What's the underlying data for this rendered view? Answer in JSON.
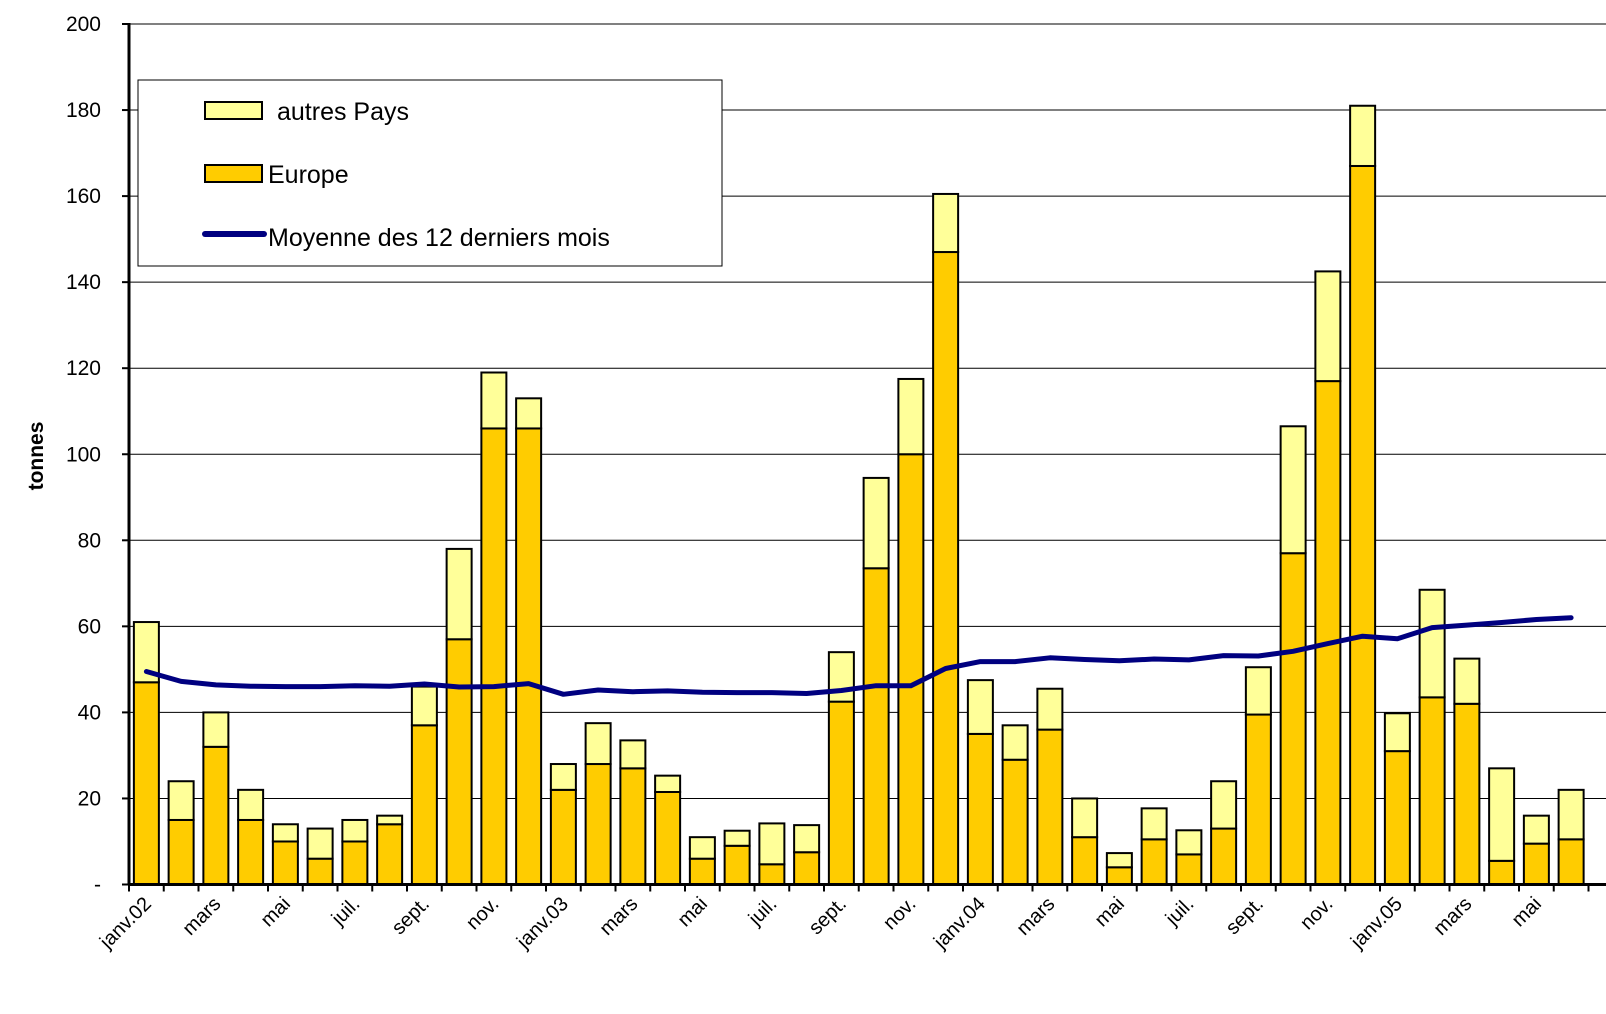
{
  "chart_data": {
    "type": "bar",
    "stacked": true,
    "ylabel": "tonnes",
    "ylim": [
      0,
      200
    ],
    "yticks": [
      {
        "value": 0,
        "label": "-"
      },
      {
        "value": 20,
        "label": "20"
      },
      {
        "value": 40,
        "label": "40"
      },
      {
        "value": 60,
        "label": "60"
      },
      {
        "value": 80,
        "label": "80"
      },
      {
        "value": 100,
        "label": "100"
      },
      {
        "value": 120,
        "label": "120"
      },
      {
        "value": 140,
        "label": "140"
      },
      {
        "value": 160,
        "label": "160"
      },
      {
        "value": 180,
        "label": "180"
      },
      {
        "value": 200,
        "label": "200"
      }
    ],
    "xtick_labels": [
      "janv.02",
      "mars",
      "mai",
      "juil.",
      "sept.",
      "nov.",
      "janv.03",
      "mars",
      "mai",
      "juil.",
      "sept.",
      "nov.",
      "janv.04",
      "mars",
      "mai",
      "juil.",
      "sept.",
      "nov.",
      "janv.05",
      "mars",
      "mai"
    ],
    "grid": true,
    "legend_position": "top-left",
    "colors": {
      "autres": "#ffff99",
      "europe": "#ffcc00",
      "line": "#000080",
      "edge": "#000000"
    },
    "series": [
      {
        "name": "Europe",
        "kind": "bar",
        "values": [
          47,
          15,
          32,
          15,
          10,
          6,
          10,
          14,
          37,
          57,
          106,
          106,
          22,
          28,
          27,
          21.5,
          6,
          9,
          4.7,
          7.5,
          42.5,
          73.5,
          100,
          147,
          35,
          29,
          36,
          11,
          4,
          10.5,
          7,
          13,
          39.5,
          77,
          117,
          167,
          31,
          43.5,
          42,
          5.5,
          9.5,
          10.5
        ]
      },
      {
        "name": "autres Pays",
        "kind": "bar",
        "values": [
          14,
          9,
          8,
          7,
          4,
          7,
          5,
          2,
          9,
          21,
          13,
          7,
          6,
          9.5,
          6.5,
          3.8,
          5,
          3.5,
          9.5,
          6.3,
          11.5,
          21,
          17.5,
          13.5,
          12.5,
          8,
          9.5,
          9,
          3.3,
          7.2,
          5.6,
          11,
          11,
          29.5,
          25.5,
          14,
          8.8,
          25,
          10.5,
          21.5,
          6.5,
          11.5
        ]
      },
      {
        "name": "Moyenne des 12 derniers mois",
        "kind": "line",
        "values": [
          49.5,
          47.2,
          46.4,
          46.1,
          46,
          46,
          46.2,
          46.1,
          46.6,
          45.9,
          46,
          46.7,
          44.2,
          45.2,
          44.8,
          45,
          44.7,
          44.6,
          44.6,
          44.4,
          45.1,
          46.2,
          46.2,
          50.2,
          51.8,
          51.8,
          52.7,
          52.3,
          52,
          52.4,
          52.2,
          53.2,
          53.1,
          54.2,
          56,
          57.7,
          57.1,
          59.7,
          60.3,
          60.9,
          61.6,
          62
        ]
      }
    ]
  }
}
